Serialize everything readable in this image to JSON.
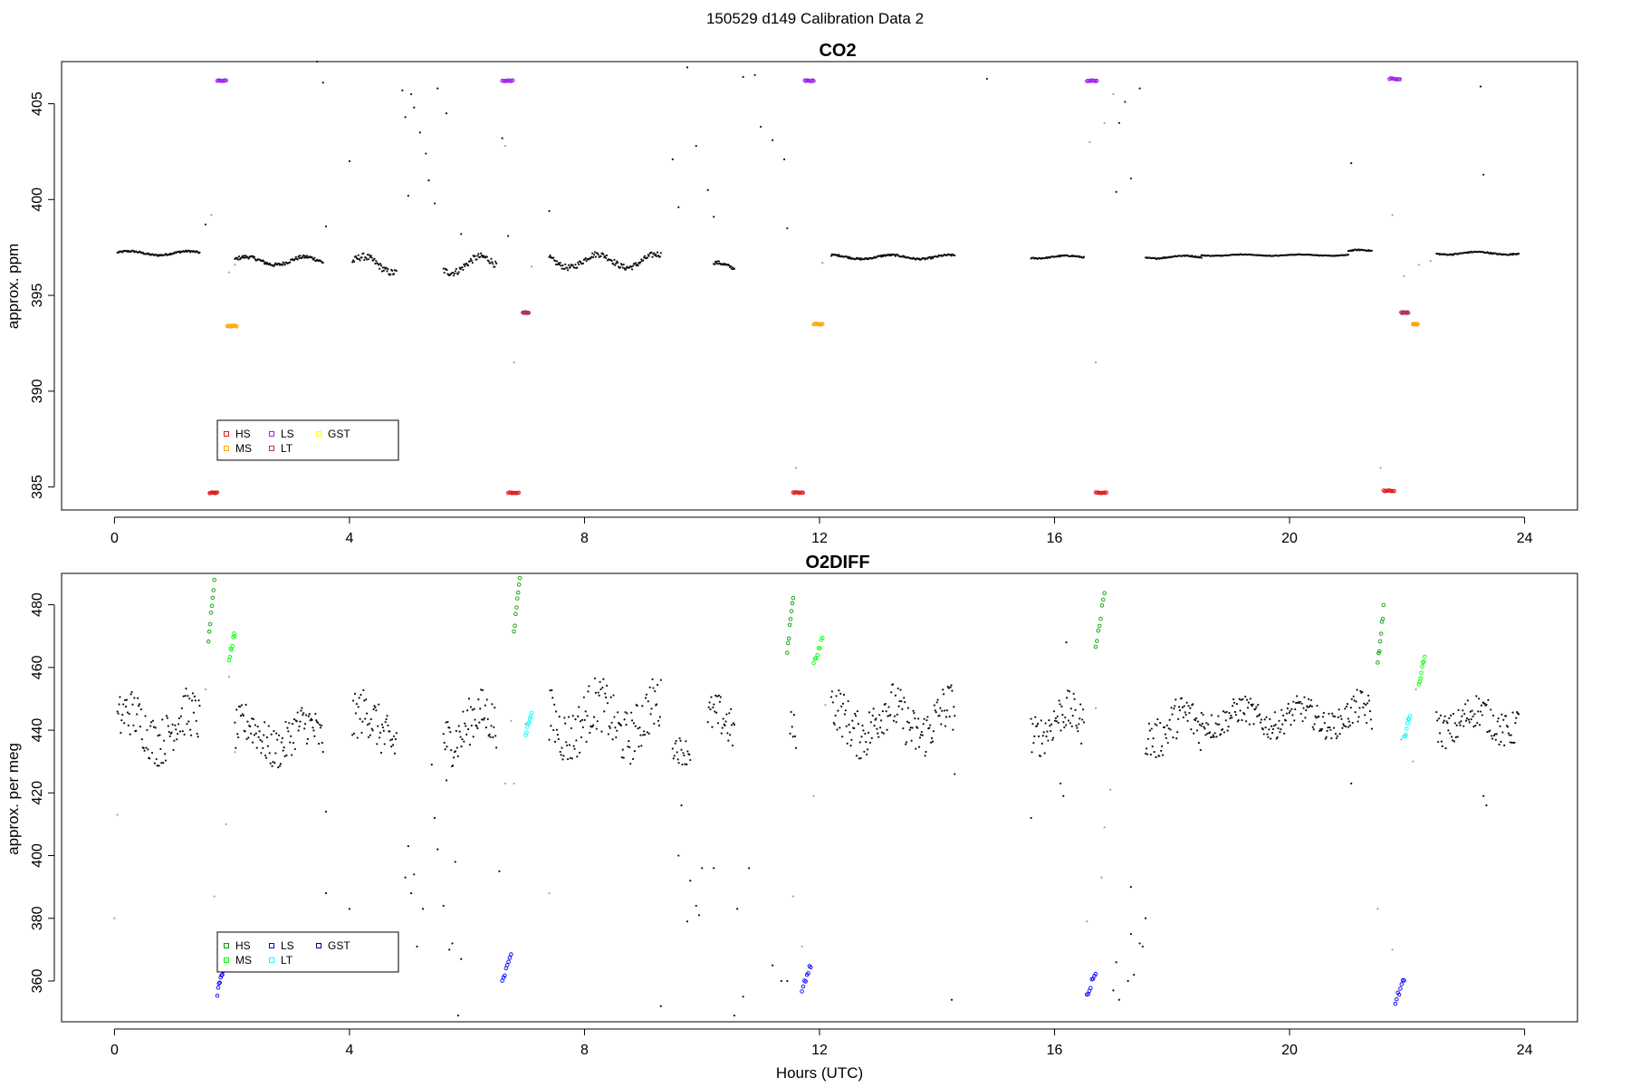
{
  "page_title": "150529   d149   Calibration Data 2",
  "xlabel": "Hours (UTC)",
  "chart_data": [
    {
      "type": "scatter",
      "title": "CO2",
      "xlabel": "Hours (UTC)",
      "ylabel": "approx. ppm",
      "xlim": [
        -0.9,
        24.9
      ],
      "ylim": [
        383.8,
        407.2
      ],
      "xticks": [
        0,
        4,
        8,
        12,
        16,
        20,
        24
      ],
      "yticks": [
        385,
        390,
        395,
        400,
        405
      ],
      "legend": {
        "placement": "bottom-left",
        "entries": [
          "HS",
          "LS",
          "GST",
          "MS",
          "LT"
        ]
      },
      "colors": {
        "HS": "#e31a1c",
        "MS": "#ffa500",
        "LS": "#a020f0",
        "LT": "#b03060",
        "GST": "#ffff00",
        "data": "#111111",
        "transition": "#a0a0a0"
      },
      "calibrations": {
        "HS": [
          [
            1.62,
            1.75,
            384.7
          ],
          [
            6.7,
            6.88,
            384.7
          ],
          [
            11.55,
            11.72,
            384.7
          ],
          [
            16.7,
            16.88,
            384.7
          ],
          [
            21.6,
            21.78,
            384.8
          ]
        ],
        "LS": [
          [
            1.75,
            1.9,
            406.2
          ],
          [
            6.6,
            6.78,
            406.2
          ],
          [
            11.75,
            11.9,
            406.2
          ],
          [
            16.55,
            16.72,
            406.2
          ],
          [
            21.7,
            21.88,
            406.3
          ]
        ],
        "MS": [
          [
            1.92,
            2.08,
            393.4
          ],
          [
            11.9,
            12.05,
            393.5
          ],
          [
            22.1,
            22.18,
            393.5
          ]
        ],
        "LT": [
          [
            6.95,
            7.05,
            394.1
          ],
          [
            21.9,
            22.02,
            394.1
          ]
        ]
      },
      "segments": [
        {
          "x0": 0.05,
          "x1": 1.45,
          "base": 397.2,
          "amp": 0.15,
          "gap": false
        },
        {
          "x0": 2.05,
          "x1": 3.55,
          "base": 396.8,
          "amp": 0.3,
          "gap": false
        },
        {
          "x0": 4.05,
          "x1": 4.8,
          "base": 396.6,
          "amp": 0.6,
          "gap": false
        },
        {
          "x0": 5.6,
          "x1": 6.5,
          "base": 396.6,
          "amp": 0.6,
          "gap": false
        },
        {
          "x0": 7.4,
          "x1": 9.3,
          "base": 396.8,
          "amp": 0.5,
          "gap": false
        },
        {
          "x0": 10.2,
          "x1": 10.55,
          "base": 396.5,
          "amp": 0.3,
          "gap": false
        },
        {
          "x0": 12.2,
          "x1": 14.3,
          "base": 397.0,
          "amp": 0.15,
          "gap": false
        },
        {
          "x0": 15.6,
          "x1": 16.5,
          "base": 397.0,
          "amp": 0.1,
          "gap": false
        },
        {
          "x0": 17.55,
          "x1": 18.5,
          "base": 397.0,
          "amp": 0.1,
          "gap": false
        },
        {
          "x0": 18.5,
          "x1": 21.0,
          "base": 397.1,
          "amp": 0.05,
          "gap": false
        },
        {
          "x0": 21.0,
          "x1": 21.4,
          "base": 397.3,
          "amp": 0.1,
          "gap": false
        },
        {
          "x0": 22.5,
          "x1": 23.9,
          "base": 397.2,
          "amp": 0.1,
          "gap": false
        }
      ],
      "outliers": [
        [
          1.55,
          398.7
        ],
        [
          3.45,
          407.2
        ],
        [
          3.6,
          398.6
        ],
        [
          3.55,
          406.1
        ],
        [
          4.0,
          402.0
        ],
        [
          4.9,
          405.7
        ],
        [
          4.95,
          404.3
        ],
        [
          5.0,
          400.2
        ],
        [
          5.05,
          405.5
        ],
        [
          5.1,
          404.8
        ],
        [
          5.2,
          403.5
        ],
        [
          5.3,
          402.4
        ],
        [
          5.35,
          401.0
        ],
        [
          5.45,
          399.8
        ],
        [
          5.5,
          405.8
        ],
        [
          5.65,
          404.5
        ],
        [
          5.9,
          398.2
        ],
        [
          6.6,
          403.2
        ],
        [
          6.7,
          398.1
        ],
        [
          7.4,
          399.4
        ],
        [
          9.5,
          402.1
        ],
        [
          9.6,
          399.6
        ],
        [
          9.75,
          406.9
        ],
        [
          9.9,
          402.8
        ],
        [
          10.1,
          400.5
        ],
        [
          10.2,
          399.1
        ],
        [
          10.9,
          406.5
        ],
        [
          10.7,
          406.4
        ],
        [
          11.0,
          403.8
        ],
        [
          11.2,
          403.1
        ],
        [
          11.4,
          402.1
        ],
        [
          11.45,
          398.5
        ],
        [
          14.85,
          406.3
        ],
        [
          17.1,
          404.0
        ],
        [
          17.2,
          405.1
        ],
        [
          17.3,
          401.1
        ],
        [
          17.45,
          405.8
        ],
        [
          17.05,
          400.4
        ],
        [
          21.05,
          401.9
        ],
        [
          23.25,
          405.9
        ],
        [
          23.3,
          401.3
        ]
      ],
      "transitions": [
        [
          1.65,
          399.2
        ],
        [
          1.95,
          396.2
        ],
        [
          2.05,
          396.6
        ],
        [
          6.65,
          402.8
        ],
        [
          6.8,
          391.5
        ],
        [
          7.1,
          396.5
        ],
        [
          11.6,
          386.0
        ],
        [
          12.05,
          396.7
        ],
        [
          16.6,
          403.0
        ],
        [
          16.7,
          391.5
        ],
        [
          16.85,
          404.0
        ],
        [
          17.0,
          405.5
        ],
        [
          21.55,
          386.0
        ],
        [
          21.75,
          399.2
        ],
        [
          21.95,
          396.0
        ],
        [
          22.2,
          396.6
        ],
        [
          22.4,
          396.8
        ]
      ]
    },
    {
      "type": "scatter",
      "title": "O2DIFF",
      "xlabel": "Hours (UTC)",
      "ylabel": "approx. per meg",
      "xlim": [
        -0.9,
        24.9
      ],
      "ylim": [
        347,
        490
      ],
      "xticks": [
        0,
        4,
        8,
        12,
        16,
        20,
        24
      ],
      "yticks": [
        360,
        380,
        400,
        420,
        440,
        460,
        480
      ],
      "legend": {
        "placement": "bottom-left",
        "entries": [
          "HS",
          "LS",
          "GST",
          "MS",
          "LT"
        ]
      },
      "colors": {
        "HS": "#00a000",
        "MS": "#00ff00",
        "LS": "#0000ff",
        "LT": "#00ffff",
        "GST": "#00008b",
        "data": "#111111",
        "transition": "#a0a0a0"
      },
      "calibrations": {
        "HS": [
          [
            1.6,
            1.7,
            478
          ],
          [
            6.8,
            6.9,
            480
          ],
          [
            11.45,
            11.55,
            474
          ],
          [
            16.7,
            16.85,
            475
          ],
          [
            21.5,
            21.6,
            470
          ]
        ],
        "MS": [
          [
            1.95,
            2.05,
            467
          ],
          [
            11.9,
            12.05,
            465
          ],
          [
            22.2,
            22.3,
            459
          ]
        ],
        "LS": [
          [
            1.75,
            1.85,
            360
          ],
          [
            6.6,
            6.75,
            364
          ],
          [
            11.7,
            11.85,
            361
          ],
          [
            16.55,
            16.7,
            359
          ],
          [
            21.8,
            21.95,
            357
          ]
        ],
        "LT": [
          [
            7.0,
            7.1,
            442
          ],
          [
            21.95,
            22.05,
            441
          ]
        ]
      },
      "segments": [
        {
          "x0": 0.05,
          "x1": 1.45,
          "base": 441,
          "amp": 7,
          "gap": false
        },
        {
          "x0": 2.05,
          "x1": 3.55,
          "base": 438,
          "amp": 6,
          "gap": false
        },
        {
          "x0": 4.05,
          "x1": 4.8,
          "base": 441,
          "amp": 7,
          "gap": false
        },
        {
          "x0": 5.6,
          "x1": 6.5,
          "base": 441,
          "amp": 7,
          "gap": false
        },
        {
          "x0": 7.4,
          "x1": 9.3,
          "base": 443,
          "amp": 8,
          "gap": false
        },
        {
          "x0": 9.5,
          "x1": 9.8,
          "base": 436,
          "amp": 4,
          "gap": false
        },
        {
          "x0": 10.1,
          "x1": 10.55,
          "base": 441,
          "amp": 6,
          "gap": false
        },
        {
          "x0": 11.5,
          "x1": 11.6,
          "base": 442,
          "amp": 5,
          "gap": false
        },
        {
          "x0": 12.2,
          "x1": 14.3,
          "base": 443,
          "amp": 7,
          "gap": false
        },
        {
          "x0": 15.6,
          "x1": 16.5,
          "base": 442,
          "amp": 6,
          "gap": false
        },
        {
          "x0": 17.55,
          "x1": 18.5,
          "base": 441,
          "amp": 6,
          "gap": false
        },
        {
          "x0": 18.5,
          "x1": 21.0,
          "base": 444,
          "amp": 4,
          "gap": false
        },
        {
          "x0": 21.0,
          "x1": 21.4,
          "base": 444,
          "amp": 5,
          "gap": false
        },
        {
          "x0": 22.5,
          "x1": 23.9,
          "base": 443,
          "amp": 5,
          "gap": false
        }
      ],
      "outliers": [
        [
          3.6,
          414
        ],
        [
          3.6,
          388
        ],
        [
          4.0,
          383
        ],
        [
          4.95,
          393
        ],
        [
          5.0,
          403
        ],
        [
          5.05,
          388
        ],
        [
          5.1,
          394
        ],
        [
          5.15,
          371
        ],
        [
          5.25,
          383
        ],
        [
          5.4,
          429
        ],
        [
          5.45,
          412
        ],
        [
          5.5,
          402
        ],
        [
          5.6,
          384
        ],
        [
          5.65,
          424
        ],
        [
          5.7,
          370
        ],
        [
          5.75,
          372
        ],
        [
          5.8,
          398
        ],
        [
          5.9,
          367
        ],
        [
          5.85,
          349
        ],
        [
          6.55,
          395
        ],
        [
          9.3,
          352
        ],
        [
          9.6,
          400
        ],
        [
          9.65,
          416
        ],
        [
          9.75,
          379
        ],
        [
          9.8,
          392
        ],
        [
          9.9,
          384
        ],
        [
          9.95,
          381
        ],
        [
          10.0,
          396
        ],
        [
          10.2,
          396
        ],
        [
          10.55,
          349
        ],
        [
          10.6,
          383
        ],
        [
          10.7,
          355
        ],
        [
          10.8,
          396
        ],
        [
          11.2,
          365
        ],
        [
          11.35,
          360
        ],
        [
          11.45,
          360
        ],
        [
          14.25,
          354
        ],
        [
          14.3,
          426
        ],
        [
          15.6,
          412
        ],
        [
          16.1,
          423
        ],
        [
          16.15,
          419
        ],
        [
          16.2,
          468
        ],
        [
          17.0,
          357
        ],
        [
          17.05,
          366
        ],
        [
          17.1,
          354
        ],
        [
          17.25,
          360
        ],
        [
          17.3,
          390
        ],
        [
          17.3,
          375
        ],
        [
          17.35,
          362
        ],
        [
          17.55,
          380
        ],
        [
          17.5,
          371
        ],
        [
          17.45,
          372
        ],
        [
          21.05,
          423
        ],
        [
          23.3,
          419
        ],
        [
          23.35,
          416
        ]
      ],
      "transitions": [
        [
          0.0,
          380
        ],
        [
          0.05,
          413
        ],
        [
          1.55,
          453
        ],
        [
          1.7,
          387
        ],
        [
          1.9,
          410
        ],
        [
          1.95,
          457
        ],
        [
          2.05,
          433
        ],
        [
          6.65,
          423
        ],
        [
          6.8,
          423
        ],
        [
          6.75,
          443
        ],
        [
          7.0,
          442
        ],
        [
          7.4,
          388
        ],
        [
          11.55,
          387
        ],
        [
          11.7,
          371
        ],
        [
          11.9,
          419
        ],
        [
          12.1,
          448
        ],
        [
          16.55,
          379
        ],
        [
          16.7,
          447
        ],
        [
          16.85,
          409
        ],
        [
          16.95,
          421
        ],
        [
          16.8,
          393
        ],
        [
          21.5,
          383
        ],
        [
          21.75,
          370
        ],
        [
          21.9,
          437
        ],
        [
          22.1,
          430
        ],
        [
          22.15,
          453
        ]
      ]
    }
  ]
}
